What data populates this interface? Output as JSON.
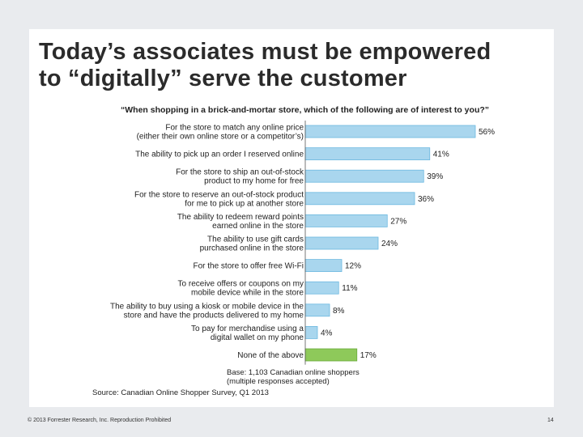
{
  "slide": {
    "title_line1": "Today’s associates must be empowered",
    "title_line2": "to “digitally” serve the customer",
    "base_line1": "Base: 1,103 Canadian online shoppers",
    "base_line2": "(multiple responses accepted)",
    "source": "Source: Canadian Online Shopper Survey, Q1 2013",
    "copyright": "© 2013 Forrester Research, Inc. Reproduction Prohibited",
    "page_number": "14"
  },
  "chart_data": {
    "type": "bar",
    "orientation": "horizontal",
    "title": "“When shopping in a brick-and-mortar store, which of the following are of interest to you?”",
    "categories": [
      [
        "For the store to match any online price",
        "(either their own online store or a competitor’s)"
      ],
      [
        "The ability to pick up an order I reserved online"
      ],
      [
        "For the store to ship an out-of-stock",
        "product to my home for free"
      ],
      [
        "For the store to reserve an out-of-stock product",
        "for me to pick up at another store"
      ],
      [
        "The ability to redeem reward points",
        "earned online in the store"
      ],
      [
        "The ability to use gift cards",
        "purchased online in the store"
      ],
      [
        "For the store to offer free Wi-Fi"
      ],
      [
        "To receive offers or coupons on my",
        "mobile device while in the store"
      ],
      [
        "The ability to buy using a kiosk or mobile device in the",
        "store and have the products delivered to my home"
      ],
      [
        "To pay for merchandise using a",
        "digital wallet on my phone"
      ],
      [
        "None of the above"
      ]
    ],
    "values": [
      56,
      41,
      39,
      36,
      27,
      24,
      12,
      11,
      8,
      4,
      17
    ],
    "value_labels": [
      "56%",
      "41%",
      "39%",
      "36%",
      "27%",
      "24%",
      "12%",
      "11%",
      "8%",
      "4%",
      "17%"
    ],
    "highlight_index": 10,
    "colors": {
      "bar": "#a9d6ee",
      "bar_edge": "#6cb8e0",
      "highlight_bar": "#8ec95a",
      "highlight_edge": "#6aab3a"
    },
    "xlim": [
      0,
      56
    ]
  }
}
